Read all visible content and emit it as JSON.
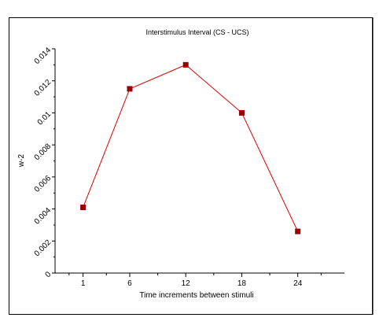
{
  "chart_data": {
    "type": "line",
    "title": "Interstimulus Interval (CS - UCS)",
    "xlabel": "Time increments between stimuli",
    "ylabel": "w-2",
    "x": [
      1,
      6,
      12,
      18,
      24
    ],
    "series": [
      {
        "values": [
          0.0041,
          0.0115,
          0.013,
          0.01,
          0.0026
        ],
        "color": "#dd0000",
        "marker_color": "#990000"
      }
    ],
    "x_tick_labels": [
      "1",
      "6",
      "12",
      "18",
      "24"
    ],
    "y_ticks": [
      0,
      0.002,
      0.004,
      0.006,
      0.008,
      0.01,
      0.012,
      0.014
    ],
    "y_tick_labels": [
      "0",
      "0.002",
      "0.004",
      "0.006",
      "0.008",
      "0.01",
      "0.012",
      "0.014"
    ],
    "ylim": [
      0,
      0.014
    ],
    "grid": false,
    "legend": "none"
  }
}
